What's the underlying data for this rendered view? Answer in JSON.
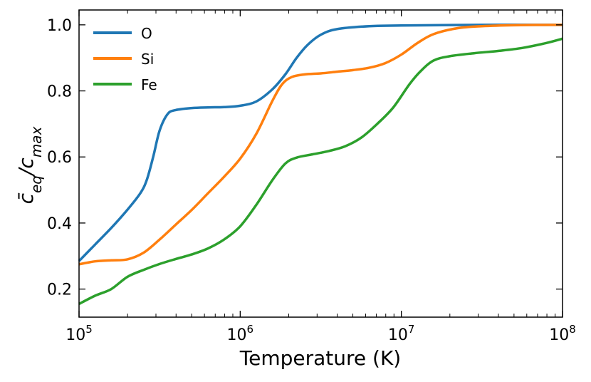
{
  "chart_data": {
    "type": "line",
    "title": "",
    "xlabel": "Temperature (K)",
    "ylabel": "c̄_eq/c_max",
    "ylabel_parts": {
      "base": "c̄",
      "sub1": "eq",
      "slash": "/c",
      "sub2": "max"
    },
    "xscale": "log",
    "xlim": [
      100000,
      100000000
    ],
    "ylim": [
      0.115,
      1.045
    ],
    "x_ticks": [
      {
        "value": 100000,
        "base": "10",
        "exp": "5"
      },
      {
        "value": 1000000,
        "base": "10",
        "exp": "6"
      },
      {
        "value": 10000000,
        "base": "10",
        "exp": "7"
      },
      {
        "value": 100000000,
        "base": "10",
        "exp": "8"
      }
    ],
    "y_ticks": [
      {
        "value": 0.2,
        "label": "0.2"
      },
      {
        "value": 0.4,
        "label": "0.4"
      },
      {
        "value": 0.6,
        "label": "0.6"
      },
      {
        "value": 0.8,
        "label": "0.8"
      },
      {
        "value": 1.0,
        "label": "1.0"
      }
    ],
    "legend_position": "top-left",
    "series": [
      {
        "name": "O",
        "color": "#1f77b4",
        "points": [
          [
            5.0,
            0.285
          ],
          [
            5.1,
            0.335
          ],
          [
            5.2,
            0.385
          ],
          [
            5.3,
            0.44
          ],
          [
            5.38,
            0.49
          ],
          [
            5.42,
            0.53
          ],
          [
            5.46,
            0.6
          ],
          [
            5.5,
            0.68
          ],
          [
            5.55,
            0.73
          ],
          [
            5.6,
            0.742
          ],
          [
            5.7,
            0.748
          ],
          [
            5.8,
            0.75
          ],
          [
            5.9,
            0.751
          ],
          [
            6.0,
            0.755
          ],
          [
            6.1,
            0.768
          ],
          [
            6.2,
            0.805
          ],
          [
            6.28,
            0.85
          ],
          [
            6.35,
            0.9
          ],
          [
            6.42,
            0.94
          ],
          [
            6.5,
            0.97
          ],
          [
            6.6,
            0.987
          ],
          [
            6.8,
            0.996
          ],
          [
            7.0,
            0.998
          ],
          [
            7.5,
            1.0
          ],
          [
            8.0,
            1.0
          ]
        ]
      },
      {
        "name": "Si",
        "color": "#ff7f0e",
        "points": [
          [
            5.0,
            0.275
          ],
          [
            5.1,
            0.284
          ],
          [
            5.2,
            0.287
          ],
          [
            5.3,
            0.29
          ],
          [
            5.4,
            0.31
          ],
          [
            5.5,
            0.35
          ],
          [
            5.6,
            0.395
          ],
          [
            5.7,
            0.44
          ],
          [
            5.8,
            0.49
          ],
          [
            5.9,
            0.54
          ],
          [
            6.0,
            0.595
          ],
          [
            6.1,
            0.67
          ],
          [
            6.2,
            0.77
          ],
          [
            6.26,
            0.82
          ],
          [
            6.32,
            0.842
          ],
          [
            6.4,
            0.85
          ],
          [
            6.5,
            0.853
          ],
          [
            6.6,
            0.858
          ],
          [
            6.7,
            0.863
          ],
          [
            6.8,
            0.87
          ],
          [
            6.9,
            0.884
          ],
          [
            7.0,
            0.91
          ],
          [
            7.1,
            0.945
          ],
          [
            7.2,
            0.972
          ],
          [
            7.35,
            0.99
          ],
          [
            7.5,
            0.996
          ],
          [
            7.7,
            0.999
          ],
          [
            8.0,
            1.0
          ]
        ]
      },
      {
        "name": "Fe",
        "color": "#2ca02c",
        "points": [
          [
            5.0,
            0.155
          ],
          [
            5.1,
            0.18
          ],
          [
            5.2,
            0.2
          ],
          [
            5.3,
            0.237
          ],
          [
            5.4,
            0.258
          ],
          [
            5.5,
            0.276
          ],
          [
            5.6,
            0.291
          ],
          [
            5.7,
            0.305
          ],
          [
            5.8,
            0.323
          ],
          [
            5.9,
            0.35
          ],
          [
            6.0,
            0.39
          ],
          [
            6.1,
            0.455
          ],
          [
            6.2,
            0.53
          ],
          [
            6.28,
            0.58
          ],
          [
            6.35,
            0.598
          ],
          [
            6.45,
            0.608
          ],
          [
            6.55,
            0.618
          ],
          [
            6.65,
            0.632
          ],
          [
            6.75,
            0.658
          ],
          [
            6.85,
            0.7
          ],
          [
            6.95,
            0.75
          ],
          [
            7.05,
            0.82
          ],
          [
            7.12,
            0.86
          ],
          [
            7.2,
            0.892
          ],
          [
            7.3,
            0.905
          ],
          [
            7.45,
            0.914
          ],
          [
            7.6,
            0.921
          ],
          [
            7.75,
            0.93
          ],
          [
            7.9,
            0.945
          ],
          [
            8.0,
            0.958
          ]
        ]
      }
    ]
  }
}
